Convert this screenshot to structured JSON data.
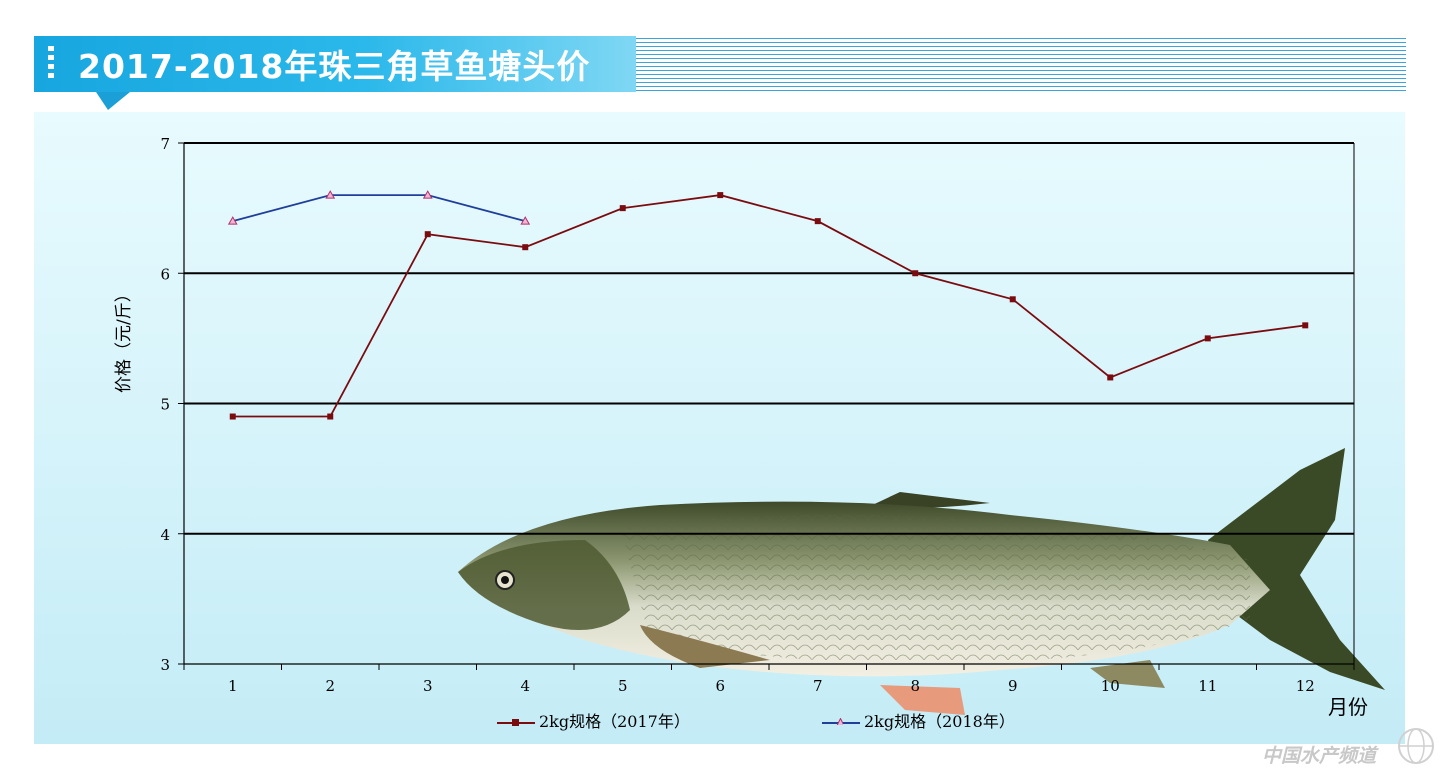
{
  "title": "2017-2018年珠三角草鱼塘头价",
  "chart_data": {
    "type": "line",
    "title": "2017-2018年珠三角草鱼塘头价",
    "xlabel": "月份",
    "ylabel": "价格（元/斤）",
    "categories": [
      "1",
      "2",
      "3",
      "4",
      "5",
      "6",
      "7",
      "8",
      "9",
      "10",
      "11",
      "12"
    ],
    "ylim": [
      3,
      7
    ],
    "yticks": [
      3,
      4,
      5,
      6,
      7
    ],
    "grid": "horizontal",
    "legend_position": "bottom",
    "series": [
      {
        "name": "2kg规格（2017年）",
        "color": "#7a0c10",
        "marker": "square",
        "values": [
          4.9,
          4.9,
          6.3,
          6.2,
          6.5,
          6.6,
          6.4,
          6.0,
          5.8,
          5.2,
          5.5,
          5.6
        ]
      },
      {
        "name": "2kg规格（2018年）",
        "color": "#1f3f9a",
        "marker": "triangle",
        "values": [
          6.4,
          6.6,
          6.6,
          6.4,
          null,
          null,
          null,
          null,
          null,
          null,
          null,
          null
        ]
      }
    ]
  },
  "watermark": "中国水产频道",
  "colors": {
    "title_bg": "#1ea9e1",
    "panel_bg": "#d3f2fa"
  },
  "icons": {
    "title_marker": "dotted-bar-icon",
    "watermark_logo": "globe-icon",
    "illustration": "grass-carp-fish-illustration"
  }
}
